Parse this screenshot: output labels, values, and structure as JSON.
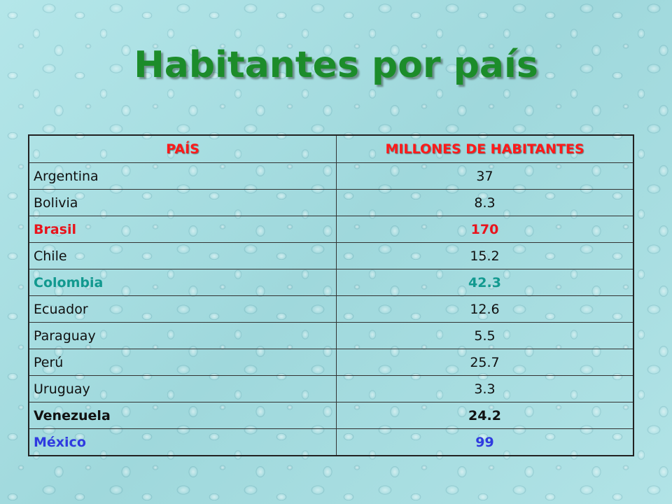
{
  "title": "Habitantes por país",
  "table": {
    "headers": [
      "PAÍS",
      "MILLONES DE HABITANTES"
    ],
    "rows": [
      {
        "country": "Argentina",
        "value": "37",
        "style": "normal",
        "color": "#111111"
      },
      {
        "country": "Bolivia",
        "value": "8.3",
        "style": "normal",
        "color": "#111111"
      },
      {
        "country": "Brasil",
        "value": "170",
        "style": "bold",
        "color": "#e8141c"
      },
      {
        "country": "Chile",
        "value": "15.2",
        "style": "normal",
        "color": "#111111"
      },
      {
        "country": "Colombia",
        "value": "42.3",
        "style": "bold",
        "color": "#12998f"
      },
      {
        "country": "Ecuador",
        "value": "12.6",
        "style": "normal",
        "color": "#111111"
      },
      {
        "country": "Paraguay",
        "value": "5.5",
        "style": "normal",
        "color": "#111111"
      },
      {
        "country": "Perú",
        "value": "25.7",
        "style": "normal",
        "color": "#111111"
      },
      {
        "country": "Uruguay",
        "value": "3.3",
        "style": "normal",
        "color": "#111111"
      },
      {
        "country": "Venezuela",
        "value": "24.2",
        "style": "bold",
        "color": "#111111"
      },
      {
        "country": "México",
        "value": "99",
        "style": "bold",
        "color": "#2f3ae0"
      }
    ]
  },
  "colors": {
    "title": "#1c8c2a",
    "header_text": "#ff1a1a",
    "background": "#a9dfe3"
  }
}
